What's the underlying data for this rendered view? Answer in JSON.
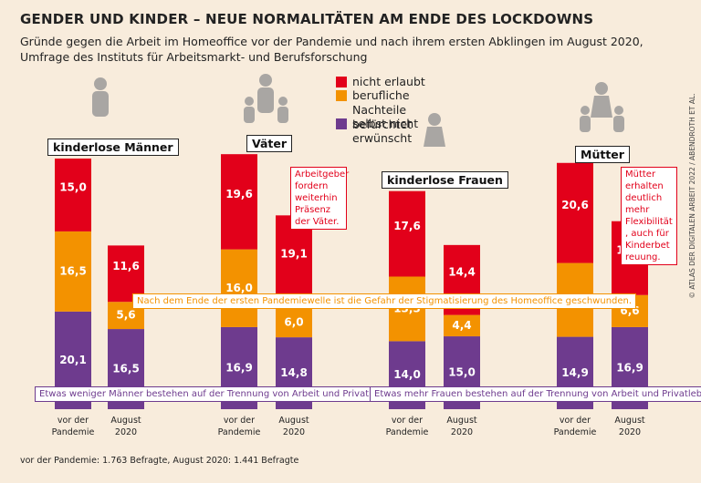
{
  "chart_data": {
    "type": "stacked-bar",
    "title": "GENDER UND KINDER – NEUE NORMALITÄTEN AM ENDE DES LOCKDOWNS",
    "subtitle": [
      "Gründe gegen die Arbeit im Homeoffice vor der Pandemie und nach ihrem ersten Abklingen im August 2020,",
      "Umfrage des Instituts für Arbeitsmarkt- und Berufsforschung"
    ],
    "groups": [
      "kinderlose Männer",
      "Väter",
      "kinderlose Frauen",
      "Mütter"
    ],
    "categories": [
      "vor der Pandemie",
      "August 2020",
      "vor der Pandemie",
      "August 2020",
      "vor der Pandemie",
      "August 2020",
      "vor der Pandemie",
      "August 2020"
    ],
    "series": [
      {
        "name": "nicht erlaubt",
        "color": "#e2001a",
        "values": [
          15.0,
          11.6,
          19.6,
          19.1,
          17.6,
          14.4,
          20.6,
          15.2
        ],
        "value_labels": [
          "15,0",
          "11,6",
          "19,6",
          "19,1",
          "17,6",
          "14,4",
          "20,6",
          "15,2"
        ]
      },
      {
        "name": "berufliche Nachteile befürchtet",
        "color": "#f39200",
        "values": [
          16.5,
          5.6,
          16.0,
          6.0,
          13.3,
          4.4,
          15.2,
          6.6
        ],
        "value_labels": [
          "16,5",
          "5,6",
          "16,0",
          "6,0",
          "13,3",
          "4,4",
          "15,2",
          "6,6"
        ]
      },
      {
        "name": "selbst nicht erwünscht",
        "color": "#6e3b8e",
        "values": [
          20.1,
          16.5,
          16.9,
          14.8,
          14.0,
          15.0,
          14.9,
          16.9
        ],
        "value_labels": [
          "20,1",
          "16,5",
          "16,9",
          "14,8",
          "14,0",
          "15,0",
          "14,9",
          "16,9"
        ]
      }
    ],
    "annotations": [
      "Arbeitgeber fordern weiterhin Präsenz der Väter.",
      "Mütter erhalten deutlich mehr Flexibilität, auch für Kinderbetreuung.",
      "Nach dem Ende der ersten Pandemiewelle ist die Gefahr der Stigmatisierung des Homeoffice geschwunden.",
      "Etwas weniger Männer bestehen auf der Trennung von Arbeit und Privatleben.",
      "Etwas mehr Frauen bestehen auf der Trennung von Arbeit und Privatleben."
    ],
    "source": "vor der Pandemie: 1.763 Befragte, August 2020: 1.441 Befragte",
    "credit": "© ATLAS DER DIGITALEN ARBEIT 2022 / ABENDROTH ET AL."
  }
}
